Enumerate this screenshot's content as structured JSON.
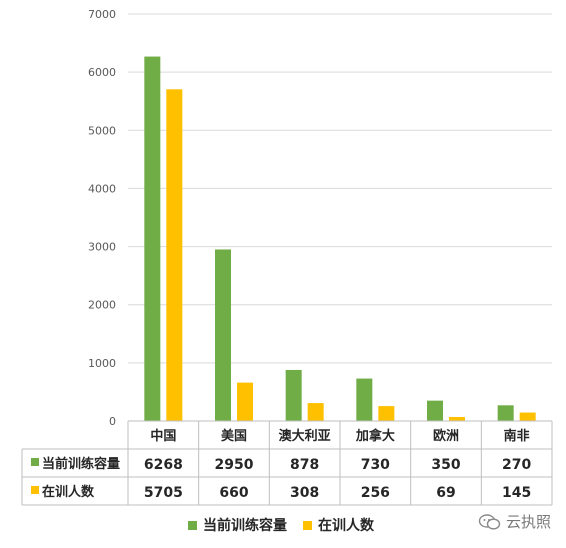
{
  "chart_data": {
    "type": "bar",
    "categories": [
      "中国",
      "美国",
      "澳大利亚",
      "加拿大",
      "欧洲",
      "南非"
    ],
    "series": [
      {
        "name": "当前训练容量",
        "values": [
          6268,
          2950,
          878,
          730,
          350,
          270
        ],
        "color": "#70AD47"
      },
      {
        "name": "在训人数",
        "values": [
          5705,
          660,
          308,
          256,
          69,
          145
        ],
        "color": "#FFC000"
      }
    ],
    "ylim": [
      0,
      7000
    ],
    "yticks": [
      "0",
      "1000",
      "2000",
      "3000",
      "4000",
      "5000",
      "6000",
      "7000"
    ],
    "grid": true,
    "legend_position": "bottom",
    "data_table": true
  },
  "watermark": {
    "text": "云执照",
    "icon": "wechat-icon"
  }
}
